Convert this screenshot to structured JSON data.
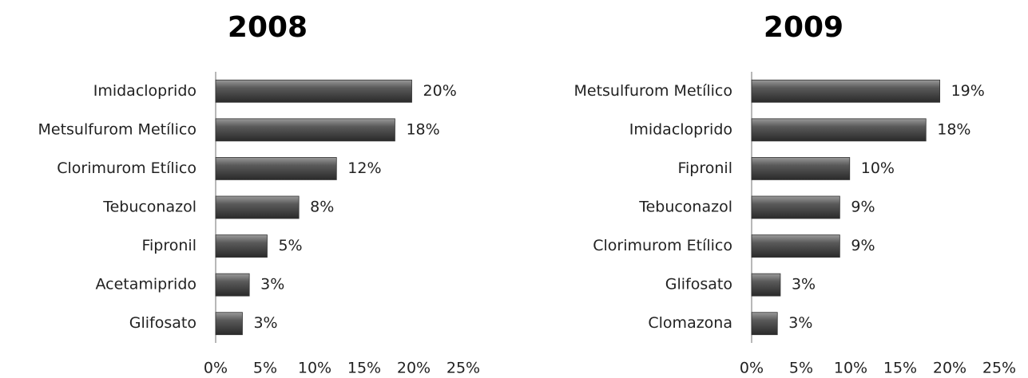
{
  "chart_data": [
    {
      "type": "hbar",
      "title": "2008",
      "categories": [
        "Imidacloprido",
        "Metsulfurom Metílico",
        "Clorimurom Etílico",
        "Tebuconazol",
        "Fipronil",
        "Acetamiprido",
        "Glifosato"
      ],
      "values": [
        19.8,
        18.1,
        12.2,
        8.4,
        5.2,
        3.4,
        2.7
      ],
      "value_labels": [
        "20%",
        "18%",
        "12%",
        "8%",
        "5%",
        "3%",
        "3%"
      ],
      "color": "#555555",
      "xlim": [
        0,
        25
      ],
      "xticks": [
        {
          "value": 0,
          "label": "0%"
        },
        {
          "value": 5,
          "label": "5%"
        },
        {
          "value": 10,
          "label": "10%"
        },
        {
          "value": 15,
          "label": "15%"
        },
        {
          "value": 20,
          "label": "20%"
        },
        {
          "value": 25,
          "label": "25%"
        }
      ]
    },
    {
      "type": "hbar",
      "title": "2009",
      "categories": [
        "Metsulfurom Metílico",
        "Imidacloprido",
        "Fipronil",
        "Tebuconazol",
        "Clorimurom Etílico",
        "Glifosato",
        "Clomazona"
      ],
      "values": [
        19.0,
        17.6,
        9.9,
        8.9,
        8.9,
        2.9,
        2.6
      ],
      "value_labels": [
        "19%",
        "18%",
        "10%",
        "9%",
        "9%",
        "3%",
        "3%"
      ],
      "color": "#555555",
      "xlim": [
        0,
        25
      ],
      "xticks": [
        {
          "value": 0,
          "label": "0%"
        },
        {
          "value": 5,
          "label": "5%"
        },
        {
          "value": 10,
          "label": "10%"
        },
        {
          "value": 15,
          "label": "15%"
        },
        {
          "value": 20,
          "label": "20%"
        },
        {
          "value": 25,
          "label": "25%"
        }
      ]
    }
  ]
}
